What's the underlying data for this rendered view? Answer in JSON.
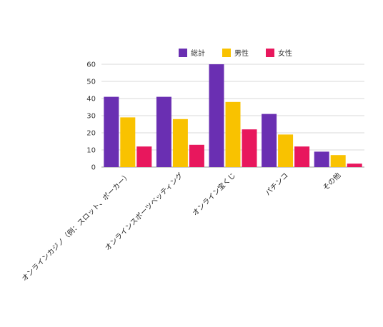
{
  "chart_data": {
    "type": "bar",
    "title": "",
    "xlabel": "",
    "ylabel": "",
    "categories": [
      "オンラインカジノ（例：スロット、ポーカー）",
      "オンラインスポーツベッティング",
      "オンライン宝くじ",
      "パチンコ",
      "その他"
    ],
    "series": [
      {
        "name": "総計",
        "color": "#6a2fb2",
        "values": [
          41,
          41,
          60,
          31,
          9
        ]
      },
      {
        "name": "男性",
        "color": "#f9c200",
        "values": [
          29,
          28,
          38,
          19,
          7
        ]
      },
      {
        "name": "女性",
        "color": "#e8175d",
        "values": [
          12,
          13,
          22,
          12,
          2
        ]
      }
    ],
    "ylim": [
      0,
      60
    ],
    "yticks": [
      0,
      10,
      20,
      30,
      40,
      50,
      60
    ],
    "grid": true,
    "legend_position": "top"
  }
}
